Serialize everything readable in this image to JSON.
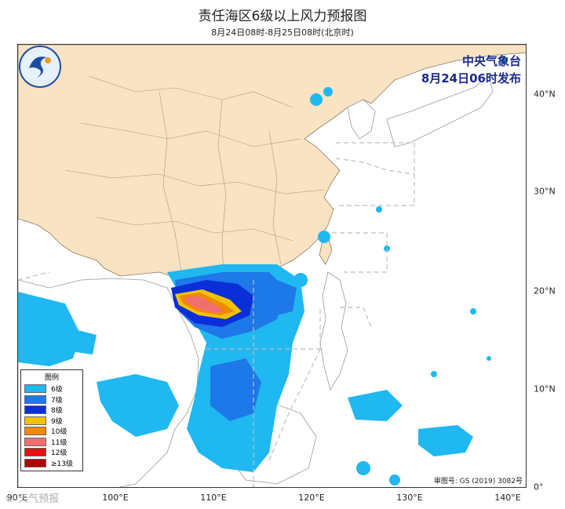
{
  "title": "责任海区6级以上风力预报图",
  "subtitle": "8月24日08时-8月25日08时(北京时)",
  "issuer": {
    "line1": "中央气象台",
    "line2": "8月24日06时发布"
  },
  "approval": "审图号: GS (2019) 3082号",
  "watermark": "© 天气预报",
  "legend": {
    "title": "图例",
    "items": [
      {
        "label": "6级",
        "color": "#1fb8f0"
      },
      {
        "label": "7级",
        "color": "#1d78e8"
      },
      {
        "label": "8级",
        "color": "#0a2ed8"
      },
      {
        "label": "9级",
        "color": "#f2c200"
      },
      {
        "label": "10级",
        "color": "#f08a00"
      },
      {
        "label": "11级",
        "color": "#f07070"
      },
      {
        "label": "12级",
        "color": "#e81010"
      },
      {
        "label": "≥13级",
        "color": "#b00000"
      }
    ]
  },
  "axes": {
    "x": [
      "90°E",
      "100°E",
      "110°E",
      "120°E",
      "130°E",
      "140°E"
    ],
    "y": [
      "40°N",
      "30°N",
      "20°N",
      "10°N",
      "0°"
    ]
  },
  "colors": {
    "land_china": "#fae3c2",
    "ocean": "#ffffff",
    "borders": "#8a7a6a",
    "dashed": "#bdbdbd"
  }
}
